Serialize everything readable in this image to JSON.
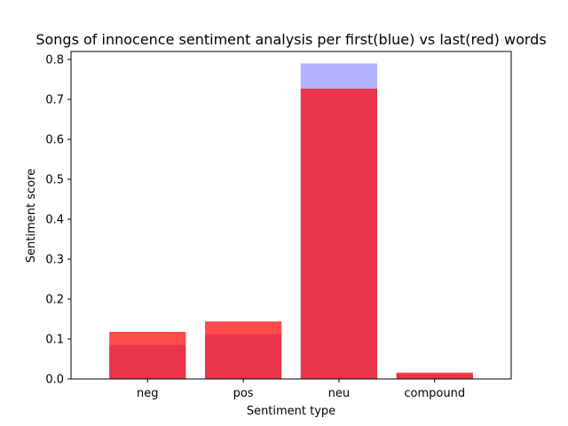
{
  "chart_data": {
    "type": "bar",
    "title": "Songs of innocence sentiment analysis per first(blue) vs last(red) words",
    "xlabel": "Sentiment type",
    "ylabel": "Sentiment score",
    "categories": [
      "neg",
      "pos",
      "neu",
      "compound"
    ],
    "series": [
      {
        "name": "first",
        "color": "#0000ff",
        "alpha": 0.3,
        "values": [
          0.085,
          0.112,
          0.79,
          0.012
        ]
      },
      {
        "name": "last",
        "color": "#ff0000",
        "alpha": 0.7,
        "values": [
          0.118,
          0.144,
          0.727,
          0.016
        ]
      }
    ],
    "ylim": [
      0,
      0.82
    ],
    "yticks": [
      "0.0",
      "0.1",
      "0.2",
      "0.3",
      "0.4",
      "0.5",
      "0.6",
      "0.7",
      "0.8"
    ],
    "grid": false,
    "overlay": true
  }
}
